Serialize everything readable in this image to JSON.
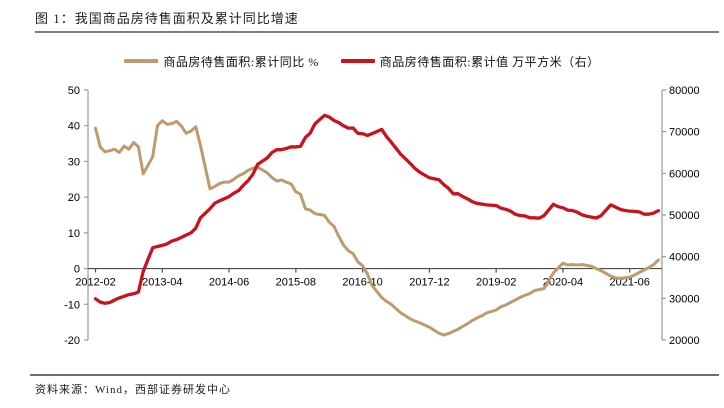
{
  "figure": {
    "title": "图 1：我国商品房待售面积及累计同比增速",
    "source": "资料来源：Wind，西部证券研发中心"
  },
  "chart_data": {
    "type": "line",
    "grid": false,
    "legend_position": "top-center",
    "legend": [
      {
        "name": "商品房待售面积:累计同比 %",
        "color": "#BE9B6E",
        "axis": "left"
      },
      {
        "name": "商品房待售面积:累计值 万平方米（右）",
        "color": "#C8121E",
        "axis": "right"
      }
    ],
    "x_tick_labels": [
      "2012-02",
      "2013-04",
      "2014-06",
      "2015-08",
      "2016-10",
      "2017-12",
      "2019-02",
      "2020-04",
      "2021-06"
    ],
    "left_axis": {
      "min": -20,
      "max": 50,
      "ticks": [
        50,
        40,
        30,
        20,
        10,
        0,
        -10,
        -20
      ]
    },
    "right_axis": {
      "min": 20000,
      "max": 80000,
      "ticks": [
        80000,
        70000,
        60000,
        50000,
        40000,
        30000,
        20000
      ]
    },
    "series": [
      {
        "name": "商品房待售面积:累计同比 %",
        "axis": "left",
        "color": "#BE9B6E",
        "points": [
          [
            "2012-02",
            39.3
          ],
          [
            "2012-03",
            34.0
          ],
          [
            "2012-04",
            32.7
          ],
          [
            "2012-05",
            33.0
          ],
          [
            "2012-06",
            33.4
          ],
          [
            "2012-07",
            32.5
          ],
          [
            "2012-08",
            34.3
          ],
          [
            "2012-09",
            33.4
          ],
          [
            "2012-10",
            35.3
          ],
          [
            "2012-11",
            34.1
          ],
          [
            "2012-12",
            26.5
          ],
          [
            "2013-02",
            31.3
          ],
          [
            "2013-03",
            40.0
          ],
          [
            "2013-04",
            41.4
          ],
          [
            "2013-05",
            40.4
          ],
          [
            "2013-06",
            40.6
          ],
          [
            "2013-07",
            41.2
          ],
          [
            "2013-08",
            39.9
          ],
          [
            "2013-09",
            37.9
          ],
          [
            "2013-10",
            38.5
          ],
          [
            "2013-11",
            39.7
          ],
          [
            "2013-12",
            34.6
          ],
          [
            "2014-02",
            22.3
          ],
          [
            "2014-03",
            23.0
          ],
          [
            "2014-04",
            23.8
          ],
          [
            "2014-05",
            24.2
          ],
          [
            "2014-06",
            24.2
          ],
          [
            "2014-07",
            25.0
          ],
          [
            "2014-08",
            26.0
          ],
          [
            "2014-09",
            26.6
          ],
          [
            "2014-10",
            27.5
          ],
          [
            "2014-11",
            28.1
          ],
          [
            "2014-12",
            28.4
          ],
          [
            "2015-02",
            26.8
          ],
          [
            "2015-03",
            25.5
          ],
          [
            "2015-04",
            24.5
          ],
          [
            "2015-05",
            24.8
          ],
          [
            "2015-06",
            24.2
          ],
          [
            "2015-07",
            23.7
          ],
          [
            "2015-08",
            21.5
          ],
          [
            "2015-09",
            20.8
          ],
          [
            "2015-10",
            16.7
          ],
          [
            "2015-11",
            16.4
          ],
          [
            "2015-12",
            15.4
          ],
          [
            "2016-02",
            14.9
          ],
          [
            "2016-03",
            13.0
          ],
          [
            "2016-04",
            11.8
          ],
          [
            "2016-05",
            9.0
          ],
          [
            "2016-06",
            6.6
          ],
          [
            "2016-07",
            5.0
          ],
          [
            "2016-08",
            4.2
          ],
          [
            "2016-09",
            1.9
          ],
          [
            "2016-10",
            0.8
          ],
          [
            "2016-11",
            -1.5
          ],
          [
            "2016-12",
            -4.8
          ],
          [
            "2017-02",
            -8.1
          ],
          [
            "2017-03",
            -9.2
          ],
          [
            "2017-04",
            -10.0
          ],
          [
            "2017-05",
            -11.2
          ],
          [
            "2017-06",
            -12.4
          ],
          [
            "2017-07",
            -13.2
          ],
          [
            "2017-08",
            -14.1
          ],
          [
            "2017-09",
            -14.7
          ],
          [
            "2017-10",
            -15.2
          ],
          [
            "2017-11",
            -15.8
          ],
          [
            "2017-12",
            -16.4
          ],
          [
            "2018-02",
            -18.1
          ],
          [
            "2018-03",
            -18.6
          ],
          [
            "2018-04",
            -18.2
          ],
          [
            "2018-05",
            -17.6
          ],
          [
            "2018-06",
            -17.0
          ],
          [
            "2018-07",
            -16.2
          ],
          [
            "2018-08",
            -15.4
          ],
          [
            "2018-09",
            -14.5
          ],
          [
            "2018-10",
            -13.8
          ],
          [
            "2018-11",
            -13.2
          ],
          [
            "2018-12",
            -12.4
          ],
          [
            "2019-02",
            -11.6
          ],
          [
            "2019-03",
            -10.7
          ],
          [
            "2019-04",
            -10.2
          ],
          [
            "2019-05",
            -9.5
          ],
          [
            "2019-06",
            -8.8
          ],
          [
            "2019-07",
            -8.1
          ],
          [
            "2019-08",
            -7.5
          ],
          [
            "2019-09",
            -7.0
          ],
          [
            "2019-10",
            -6.2
          ],
          [
            "2019-11",
            -5.9
          ],
          [
            "2019-12",
            -5.6
          ],
          [
            "2020-02",
            -1.2
          ],
          [
            "2020-03",
            0.2
          ],
          [
            "2020-04",
            1.5
          ],
          [
            "2020-05",
            1.0
          ],
          [
            "2020-06",
            1.1
          ],
          [
            "2020-07",
            1.0
          ],
          [
            "2020-08",
            1.1
          ],
          [
            "2020-09",
            0.9
          ],
          [
            "2020-10",
            0.6
          ],
          [
            "2020-11",
            0.0
          ],
          [
            "2020-12",
            -0.6
          ],
          [
            "2021-02",
            -2.1
          ],
          [
            "2021-03",
            -2.6
          ],
          [
            "2021-04",
            -2.7
          ],
          [
            "2021-05",
            -2.6
          ],
          [
            "2021-06",
            -2.4
          ],
          [
            "2021-07",
            -1.8
          ],
          [
            "2021-08",
            -1.1
          ],
          [
            "2021-09",
            -0.4
          ],
          [
            "2021-10",
            0.3
          ],
          [
            "2021-11",
            1.1
          ],
          [
            "2021-12",
            2.4
          ]
        ]
      },
      {
        "name": "商品房待售面积:累计值 万平方米（右）",
        "axis": "right",
        "color": "#C8121E",
        "points": [
          [
            "2012-02",
            29900
          ],
          [
            "2012-03",
            29100
          ],
          [
            "2012-04",
            28800
          ],
          [
            "2012-05",
            29000
          ],
          [
            "2012-06",
            29600
          ],
          [
            "2012-07",
            30100
          ],
          [
            "2012-08",
            30500
          ],
          [
            "2012-09",
            30900
          ],
          [
            "2012-10",
            31100
          ],
          [
            "2012-11",
            31500
          ],
          [
            "2012-12",
            36460
          ],
          [
            "2013-02",
            42144
          ],
          [
            "2013-03",
            42441
          ],
          [
            "2013-04",
            42698
          ],
          [
            "2013-05",
            43088
          ],
          [
            "2013-06",
            43731
          ],
          [
            "2013-07",
            44094
          ],
          [
            "2013-08",
            44636
          ],
          [
            "2013-09",
            45180
          ],
          [
            "2013-10",
            45700
          ],
          [
            "2013-11",
            46800
          ],
          [
            "2013-12",
            49295
          ],
          [
            "2014-02",
            51520
          ],
          [
            "2014-03",
            52835
          ],
          [
            "2014-04",
            53402
          ],
          [
            "2014-05",
            53894
          ],
          [
            "2014-06",
            54428
          ],
          [
            "2014-07",
            55230
          ],
          [
            "2014-08",
            55856
          ],
          [
            "2014-09",
            57148
          ],
          [
            "2014-10",
            58239
          ],
          [
            "2014-11",
            59795
          ],
          [
            "2014-12",
            62169
          ],
          [
            "2015-02",
            63675
          ],
          [
            "2015-03",
            64998
          ],
          [
            "2015-04",
            65681
          ],
          [
            "2015-05",
            65666
          ],
          [
            "2015-06",
            65951
          ],
          [
            "2015-07",
            66361
          ],
          [
            "2015-08",
            66324
          ],
          [
            "2015-09",
            66510
          ],
          [
            "2015-10",
            68632
          ],
          [
            "2015-11",
            69637
          ],
          [
            "2015-12",
            71853
          ],
          [
            "2016-02",
            73931
          ],
          [
            "2016-03",
            73516
          ],
          [
            "2016-04",
            72690
          ],
          [
            "2016-05",
            72169
          ],
          [
            "2016-06",
            71416
          ],
          [
            "2016-07",
            70868
          ],
          [
            "2016-08",
            70870
          ],
          [
            "2016-09",
            69612
          ],
          [
            "2016-10",
            69522
          ],
          [
            "2016-11",
            69095
          ],
          [
            "2016-12",
            69539
          ],
          [
            "2017-02",
            70555
          ],
          [
            "2017-03",
            68810
          ],
          [
            "2017-04",
            67469
          ],
          [
            "2017-05",
            66018
          ],
          [
            "2017-06",
            64577
          ],
          [
            "2017-07",
            63496
          ],
          [
            "2017-08",
            62352
          ],
          [
            "2017-09",
            61140
          ],
          [
            "2017-10",
            60258
          ],
          [
            "2017-11",
            59606
          ],
          [
            "2017-12",
            58923
          ],
          [
            "2018-02",
            58468
          ],
          [
            "2018-03",
            57329
          ],
          [
            "2018-04",
            56404
          ],
          [
            "2018-05",
            55083
          ],
          [
            "2018-06",
            55111
          ],
          [
            "2018-07",
            54428
          ],
          [
            "2018-08",
            53873
          ],
          [
            "2018-09",
            53191
          ],
          [
            "2018-10",
            52789
          ],
          [
            "2018-11",
            52627
          ],
          [
            "2018-12",
            52414
          ],
          [
            "2019-02",
            52251
          ],
          [
            "2019-03",
            51646
          ],
          [
            "2019-04",
            51380
          ],
          [
            "2019-05",
            50928
          ],
          [
            "2019-06",
            50162
          ],
          [
            "2019-07",
            49876
          ],
          [
            "2019-08",
            49784
          ],
          [
            "2019-09",
            49346
          ],
          [
            "2019-10",
            49323
          ],
          [
            "2019-11",
            49221
          ],
          [
            "2019-12",
            49821
          ],
          [
            "2020-02",
            52563
          ],
          [
            "2020-03",
            51987
          ],
          [
            "2020-04",
            51738
          ],
          [
            "2020-05",
            51184
          ],
          [
            "2020-06",
            51079
          ],
          [
            "2020-07",
            50672
          ],
          [
            "2020-08",
            50052
          ],
          [
            "2020-09",
            49707
          ],
          [
            "2020-10",
            49492
          ],
          [
            "2020-11",
            49287
          ],
          [
            "2020-12",
            49850
          ],
          [
            "2021-02",
            52425
          ],
          [
            "2021-03",
            51919
          ],
          [
            "2021-04",
            51335
          ],
          [
            "2021-05",
            51087
          ],
          [
            "2021-06",
            50938
          ],
          [
            "2021-07",
            50864
          ],
          [
            "2021-08",
            50738
          ],
          [
            "2021-09",
            50191
          ],
          [
            "2021-10",
            50203
          ],
          [
            "2021-11",
            50462
          ],
          [
            "2021-12",
            51023
          ]
        ]
      }
    ]
  }
}
